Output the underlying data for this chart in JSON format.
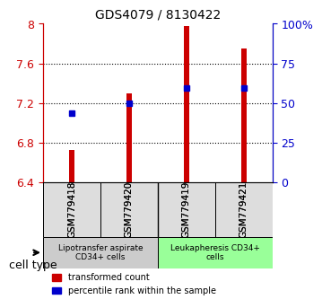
{
  "title": "GDS4079 / 8130422",
  "samples": [
    "GSM779418",
    "GSM779420",
    "GSM779419",
    "GSM779421"
  ],
  "bar_bottoms": [
    6.4,
    6.4,
    6.4,
    6.4
  ],
  "bar_tops": [
    6.73,
    7.3,
    7.98,
    7.75
  ],
  "bar_color": "#cc0000",
  "dot_values": [
    7.1,
    7.2,
    7.35,
    7.35
  ],
  "dot_color": "#0000cc",
  "ylim_left": [
    6.4,
    8.0
  ],
  "ylim_right": [
    0,
    100
  ],
  "yticks_left": [
    6.4,
    6.8,
    7.2,
    7.6,
    8.0
  ],
  "ytick_labels_left": [
    "6.4",
    "6.8",
    "7.2",
    "7.6",
    "8"
  ],
  "yticks_right": [
    0,
    25,
    50,
    75,
    100
  ],
  "ytick_labels_right": [
    "0",
    "25",
    "50",
    "75",
    "100%"
  ],
  "left_axis_color": "#cc0000",
  "right_axis_color": "#0000cc",
  "groups": [
    {
      "label": "Lipotransfer aspirate\nCD34+ cells",
      "samples": [
        0,
        1
      ],
      "color": "#cccccc"
    },
    {
      "label": "Leukapheresis CD34+\ncells",
      "samples": [
        2,
        3
      ],
      "color": "#99ff99"
    }
  ],
  "cell_type_label": "cell type",
  "legend_red_label": "transformed count",
  "legend_blue_label": "percentile rank within the sample",
  "bar_width": 0.08,
  "dotgrid_lines": [
    6.8,
    7.2,
    7.6
  ],
  "background_color": "#ffffff"
}
